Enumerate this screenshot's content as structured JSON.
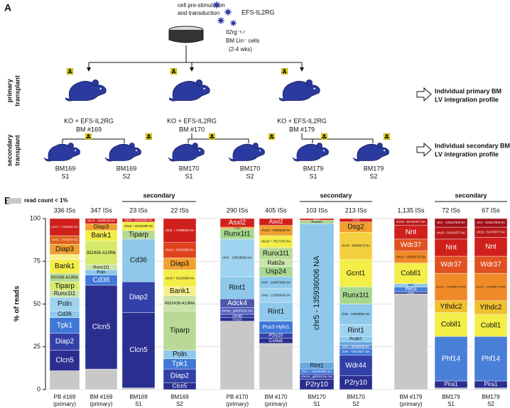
{
  "panel_a": {
    "label": "A",
    "step_text": [
      "cell pre-stimulation",
      "and transduction"
    ],
    "vector": "EFS-IL2RG",
    "donor": [
      "Il2rg⁻ʸ♂",
      "BM Lin⁻ cells",
      "(2-4 wks)"
    ],
    "primary_row": [
      "primary",
      "transplant"
    ],
    "secondary_row": [
      "secondary",
      "transplant"
    ],
    "primary_mice": [
      [
        "KO + EFS-IL2RG",
        "BM #169"
      ],
      [
        "KO + EFS-IL2RG",
        "BM #170"
      ],
      [
        "KO + EFS-IL2RG",
        "BM #179"
      ]
    ],
    "secondary_mice": [
      [
        "BM169",
        "S1"
      ],
      [
        "BM169",
        "S2"
      ],
      [
        "BM170",
        "S1"
      ],
      [
        "BM170",
        "S2"
      ],
      [
        "BM179",
        "S1"
      ],
      [
        "BM179",
        "S2"
      ]
    ],
    "primary_output": [
      "Individual primary BM",
      "LV integration profile"
    ],
    "secondary_output": [
      "Individual secondary  BM",
      "LV integration profile"
    ]
  },
  "chart_data": {
    "type": "stacked_bar",
    "panel_label": "B",
    "ylabel": "% of reads",
    "ylim": [
      0,
      100
    ],
    "yticks": [
      0,
      25,
      50,
      75,
      100
    ],
    "grid": true,
    "legend": {
      "label": "read count < 1%",
      "color": "#c8c8c8"
    },
    "group_labels": [
      "secondary",
      "secondary",
      "secondary"
    ],
    "bars": [
      {
        "label": "PB #169",
        "sublabel": "(primary)",
        "count": "336 ISs",
        "segments": [
          {
            "color": "#c8c8c8",
            "value": 11
          },
          {
            "name": "Clcn5",
            "color": "#2a2f8f",
            "value": 12
          },
          {
            "name": "Diap2",
            "color": "#3340a8",
            "value": 10
          },
          {
            "name": "Tpk1",
            "color": "#3f78d6",
            "value": 9
          },
          {
            "name": "Cd36",
            "color": "#8ec8ea",
            "value": 4
          },
          {
            "name": "Poln",
            "color": "#9fd3f0",
            "value": 8
          },
          {
            "name": "Runx1t1",
            "color": "#c9e3a8",
            "value": 4
          },
          {
            "name": "Tiparp",
            "color": "#d8ea6a",
            "value": 5
          },
          {
            "name": "932438-A13Rik",
            "color": "#b8da96",
            "value": 5
          },
          {
            "name": "Bank1",
            "color": "#f4ee48",
            "value": 8
          },
          {
            "color": "#f7f08a",
            "value": 3
          },
          {
            "name": "Diap3",
            "color": "#f0a030",
            "value": 6
          },
          {
            "name": "chr14 - 19218465 NA",
            "color": "#e0621e",
            "value": 5
          },
          {
            "name": "chr11 + 17685260 NA",
            "color": "#d0201c",
            "value": 10
          }
        ]
      },
      {
        "label": "BM #169",
        "sublabel": "(primary)",
        "count": "347 ISs",
        "segments": [
          {
            "color": "#c8c8c8",
            "value": 12
          },
          {
            "name": "Clcn5",
            "color": "#2a2f8f",
            "value": 49
          },
          {
            "name": "Cd36",
            "color": "#3f78d6",
            "value": 6
          },
          {
            "name": "Poln",
            "color": "#8ec8ea",
            "value": 3
          },
          {
            "name": "Runx1t1",
            "color": "#c9e3a8",
            "value": 3
          },
          {
            "name": "932438-A13Rik",
            "color": "#d8ea6a",
            "value": 14
          },
          {
            "name": "Bank1",
            "color": "#f4ee48",
            "value": 6
          },
          {
            "name": "Diap3",
            "color": "#f0a030",
            "value": 4
          },
          {
            "name": "chr14 - 19858158 NA",
            "color": "#d0201c",
            "value": 3
          }
        ]
      },
      {
        "label": "BM169",
        "sublabel": "S1",
        "count": "23 ISs",
        "segments": [
          {
            "color": "#c8c8c8",
            "value": 1
          },
          {
            "name": "Clcn5",
            "color": "#2a2f8f",
            "value": 44
          },
          {
            "name": "Diap2",
            "color": "#3340a8",
            "value": 18
          },
          {
            "name": "Cd36",
            "color": "#8ec8ea",
            "value": 25
          },
          {
            "name": "Tiparp",
            "color": "#b8da96",
            "value": 5
          },
          {
            "name": "chr19 + 33136999 NA",
            "color": "#f4ee48",
            "value": 5
          },
          {
            "name": "chr14 - 19218465 NA",
            "color": "#d0201c",
            "value": 2
          }
        ]
      },
      {
        "label": "BM169",
        "sublabel": "S2",
        "count": "22 ISs",
        "segments": [
          {
            "name": "Clcn5",
            "color": "#2a2f8f",
            "value": 4
          },
          {
            "name": "Diap2",
            "color": "#3340a8",
            "value": 8
          },
          {
            "name": "Tpk1",
            "color": "#3f78d6",
            "value": 6
          },
          {
            "name": "Poln",
            "color": "#8ec8ea",
            "value": 5
          },
          {
            "name": "Tiparp",
            "color": "#b8da96",
            "value": 23
          },
          {
            "name": "4932438-A13Rik",
            "color": "#c9e3a8",
            "value": 9
          },
          {
            "name": "Bank1",
            "color": "#f7f08a",
            "value": 5
          },
          {
            "name": "chr19 + 33136999 NA",
            "color": "#f4ee48",
            "value": 10
          },
          {
            "name": "Diap3",
            "color": "#f0a030",
            "value": 7
          },
          {
            "name": "chr14 - 19218465 NA",
            "color": "#e0421e",
            "value": 9
          },
          {
            "name": "chr11 + 17685260 NA",
            "color": "#d0201c",
            "value": 14
          }
        ]
      },
      {
        "label": "PB #170",
        "sublabel": "(primary)",
        "count": "290 ISs",
        "segments": [
          {
            "color": "#c8c8c8",
            "value": 40
          },
          {
            "name": "P2ry10",
            "color": "#2a2f8f",
            "value": 2
          },
          {
            "name": "Ahnak6",
            "color": "#3340a8",
            "value": 2
          },
          {
            "name": "chrUn_gl000216 NA",
            "color": "#5560c0",
            "value": 4
          },
          {
            "name": "Adck4",
            "color": "#4a58a8",
            "value": 5
          },
          {
            "name": "Rint1",
            "color": "#8ec8ea",
            "value": 13
          },
          {
            "name": "chr5 - 13593606 NA",
            "color": "#9fd3f0",
            "value": 22
          },
          {
            "name": "Runx1t1",
            "color": "#a8d890",
            "value": 6
          },
          {
            "name": "Fnip1",
            "color": "#f0a030",
            "value": 1
          },
          {
            "name": "Asxl2",
            "color": "#d0201c",
            "value": 5
          }
        ]
      },
      {
        "label": "BM #170",
        "sublabel": "(primary)",
        "count": "405 ISs",
        "segments": [
          {
            "color": "#c8c8c8",
            "value": 27
          },
          {
            "name": "Col4a5",
            "color": "#2a2f8f",
            "value": 3
          },
          {
            "name": "P2ry10",
            "color": "#3340a8",
            "value": 3
          },
          {
            "name": "Pus3  Hyls1",
            "color": "#3f78d6",
            "value": 7
          },
          {
            "name": "Rint1",
            "color": "#8ec8ea",
            "value": 11
          },
          {
            "name": "chr5 - 13593606 NA",
            "color": "#9fd3f0",
            "value": 8
          },
          {
            "name": "chr5 - 10487389 NA",
            "color": "#8ec8ea",
            "value": 7
          },
          {
            "name": "Usp24",
            "color": "#a8d890",
            "value": 6
          },
          {
            "name": "Rab2a",
            "color": "#c9e3a8",
            "value": 4
          },
          {
            "name": "Runx1t1",
            "color": "#b8da96",
            "value": 7
          },
          {
            "name": "chr18 + 7017375 NA",
            "color": "#f4ee48",
            "value": 7
          },
          {
            "name": "chr18 - 6286946 NA",
            "color": "#f0a030",
            "value": 6
          },
          {
            "name": "Asxl2",
            "color": "#d0201c",
            "value": 4
          }
        ]
      },
      {
        "label": "BM170",
        "sublabel": "S1",
        "count": "103 ISs",
        "segments": [
          {
            "name": "P2ry10",
            "color": "#2a2f8f",
            "value": 6
          },
          {
            "name": "chrUn_gl000216 NA",
            "color": "#3340a8",
            "value": 3
          },
          {
            "name": "chr1 + 28258496 NA",
            "color": "#3f78d6",
            "value": 3
          },
          {
            "name": "Rint1",
            "color": "#6aa8dc",
            "value": 4
          },
          {
            "name": "chr5 - 135936006 NA",
            "color": "#8ec8ea",
            "value": 81
          },
          {
            "name": "Runx1t1",
            "color": "#a8d890",
            "value": 2
          },
          {
            "name": "Asxl2",
            "color": "#d0201c",
            "value": 1
          }
        ]
      },
      {
        "label": "BM170",
        "sublabel": "S2",
        "count": "213 ISs",
        "segments": [
          {
            "name": "P2ry10",
            "color": "#2a2f8f",
            "value": 8
          },
          {
            "name": "Wdr44",
            "color": "#3340a8",
            "value": 12
          },
          {
            "name": "chr9 - 74014627 NA",
            "color": "#3f78d6",
            "value": 4
          },
          {
            "name": "chr1 + 28258496 NA",
            "color": "#5a8edc",
            "value": 2
          },
          {
            "color": "#6aa8dc",
            "value": 2
          },
          {
            "name": "Pcdh7",
            "color": "#8ec8ea",
            "value": 3
          },
          {
            "name": "Rint1",
            "color": "#9fd3f0",
            "value": 7
          },
          {
            "name": "chr5 - 13593606 NA",
            "color": "#8ec8ea",
            "value": 12
          },
          {
            "name": "Runx1t1",
            "color": "#a8d890",
            "value": 10
          },
          {
            "name": "Gcnt1",
            "color": "#f4ee48",
            "value": 16
          },
          {
            "name": "chr18 - 48399670 NA",
            "color": "#f4d040",
            "value": 16
          },
          {
            "name": "Dsg2",
            "color": "#f0a030",
            "value": 6
          },
          {
            "name": "Asxl2",
            "color": "#d0201c",
            "value": 2
          }
        ]
      },
      {
        "label": "BM #179",
        "sublabel": "(primary)",
        "count": "1,135 ISs",
        "segments": [
          {
            "color": "#c8c8c8",
            "value": 56
          },
          {
            "name": "Pira1",
            "color": "#2a2f8f",
            "value": 1
          },
          {
            "name": "Phf14",
            "color": "#4a7fd8",
            "value": 3
          },
          {
            "name": "Itch",
            "color": "#8ec8ea",
            "value": 2
          },
          {
            "name": "Cobll1",
            "color": "#f4ee48",
            "value": 12
          },
          {
            "name": "chr14 + 102946715 NA",
            "color": "#f08a28",
            "value": 7
          },
          {
            "name": "Wdr37",
            "color": "#e05020",
            "value": 7
          },
          {
            "name": "Nnt",
            "color": "#d0201c",
            "value": 8
          },
          {
            "name": "chr10 - 54745377 NA",
            "color": "#b81818",
            "value": 4
          }
        ]
      },
      {
        "label": "BM179",
        "sublabel": "S1",
        "count": "72 ISs",
        "segments": [
          {
            "color": "#c8c8c8",
            "value": 1
          },
          {
            "name": "Pira1",
            "color": "#2a2f8f",
            "value": 4
          },
          {
            "name": "Phf14",
            "color": "#4a7fd8",
            "value": 26
          },
          {
            "name": "Cobll1",
            "color": "#f4ee48",
            "value": 14
          },
          {
            "name": "Ythdc2",
            "color": "#f0c030",
            "value": 7
          },
          {
            "name": "chr14 + 102946715 NA",
            "color": "#f08a28",
            "value": 16
          },
          {
            "name": "Wdr37",
            "color": "#e05020",
            "value": 10
          },
          {
            "name": "Nnt",
            "color": "#d0201c",
            "value": 10
          },
          {
            "name": "chr10 - 54745377 NA",
            "color": "#b81818",
            "value": 7
          },
          {
            "name": "chr1 - 149127009 NA",
            "color": "#a01018",
            "value": 5
          }
        ]
      },
      {
        "label": "BM179",
        "sublabel": "S2",
        "count": "67 ISs",
        "segments": [
          {
            "color": "#c8c8c8",
            "value": 1
          },
          {
            "name": "Pira1",
            "color": "#2a2f8f",
            "value": 4
          },
          {
            "name": "Phf14",
            "color": "#4a7fd8",
            "value": 26
          },
          {
            "name": "Cobll1",
            "color": "#f4ee48",
            "value": 13
          },
          {
            "name": "Ythdc2",
            "color": "#f0c030",
            "value": 8
          },
          {
            "name": "chr14 + 102946715 NA",
            "color": "#f08a28",
            "value": 16
          },
          {
            "name": "Wdr37",
            "color": "#e05020",
            "value": 10
          },
          {
            "name": "Nnt",
            "color": "#d0201c",
            "value": 11
          },
          {
            "name": "chr10 - 54745377 NA",
            "color": "#b81818",
            "value": 6
          },
          {
            "name": "chr1 - 149127009 NA",
            "color": "#a01018",
            "value": 5
          }
        ]
      }
    ]
  }
}
